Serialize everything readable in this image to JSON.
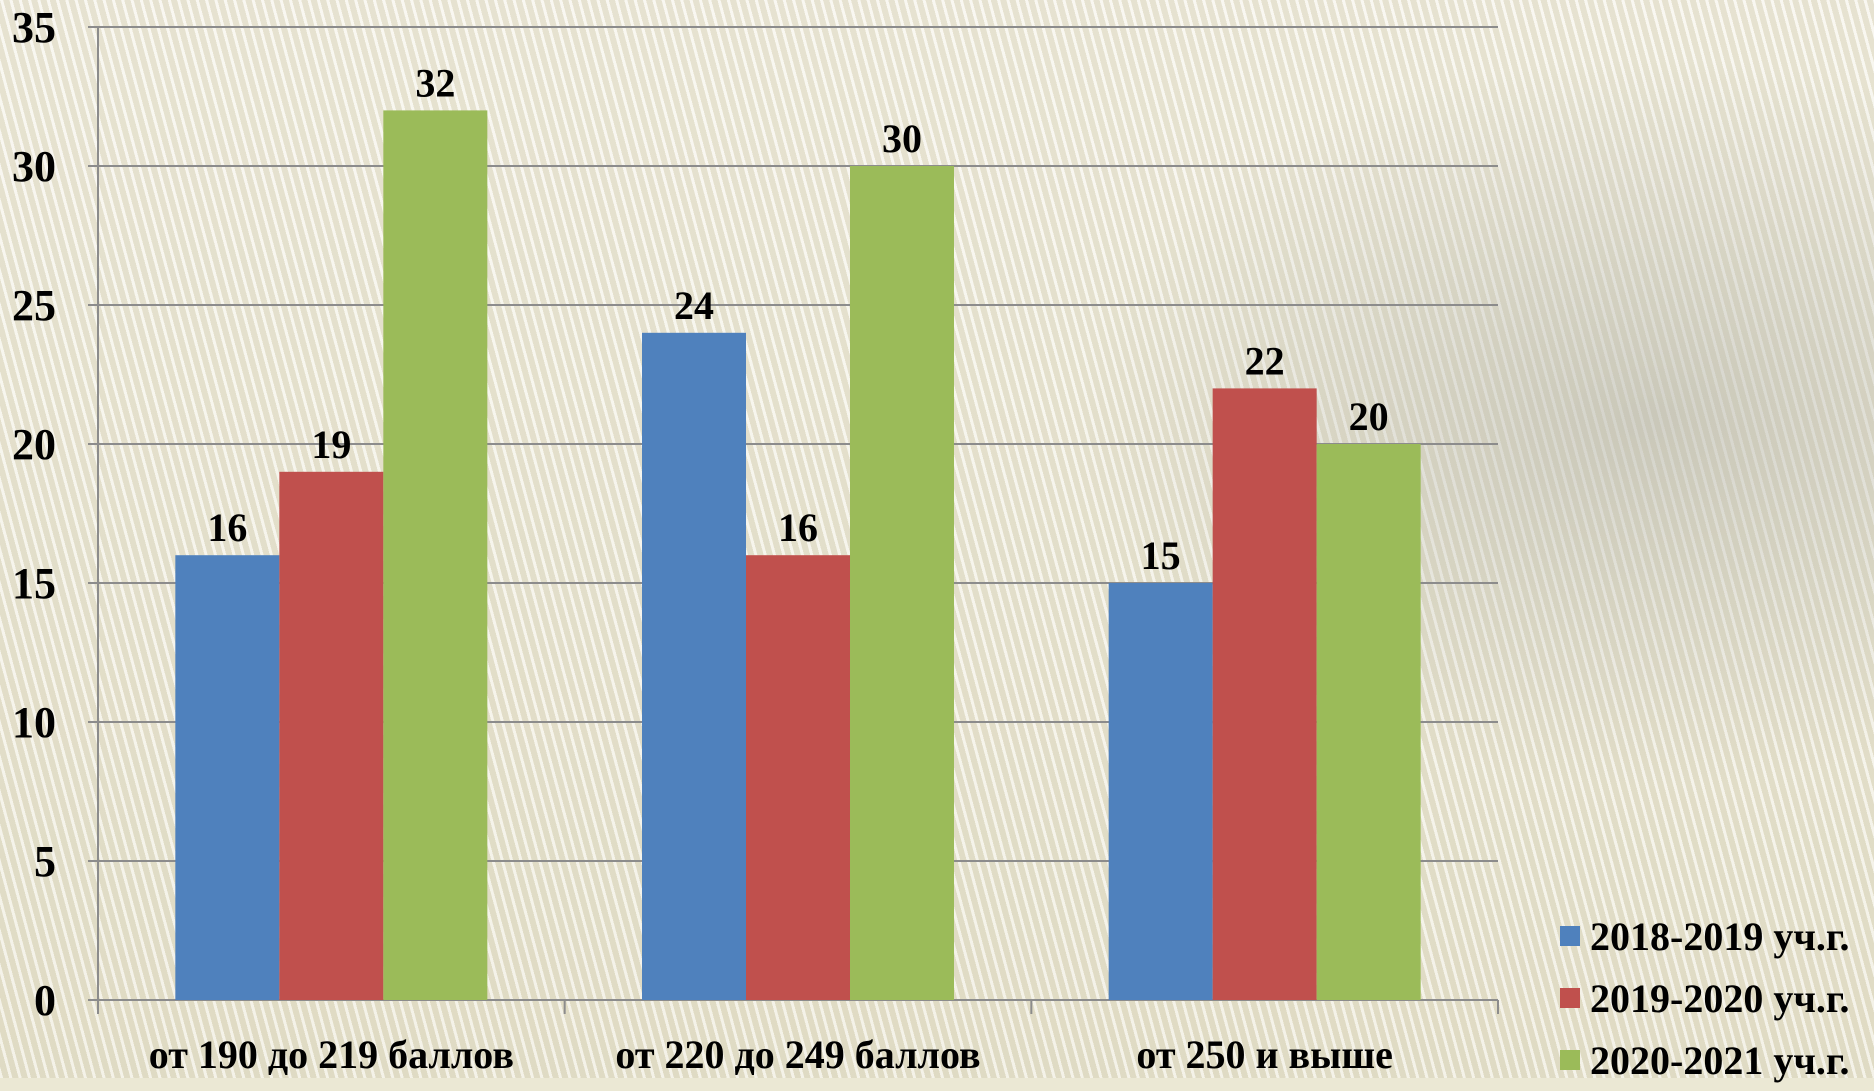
{
  "chart_data": {
    "type": "bar",
    "categories": [
      "от 190 до 219 баллов",
      "от 220 до 249 баллов",
      "от 250 и выше"
    ],
    "series": [
      {
        "name": "2018-2019 уч.г.",
        "values": [
          16,
          24,
          15
        ],
        "color": "#4f81bd"
      },
      {
        "name": "2019-2020 уч.г.",
        "values": [
          19,
          16,
          22
        ],
        "color": "#c0504d"
      },
      {
        "name": "2020-2021 уч.г.",
        "values": [
          32,
          30,
          20
        ],
        "color": "#9bbb59"
      }
    ],
    "ylim": [
      0,
      35
    ],
    "yticks": [
      "0",
      "5",
      "10",
      "15",
      "20",
      "25",
      "30",
      "35"
    ],
    "grid": true,
    "legend_position": "bottom-right",
    "data_labels": true
  }
}
